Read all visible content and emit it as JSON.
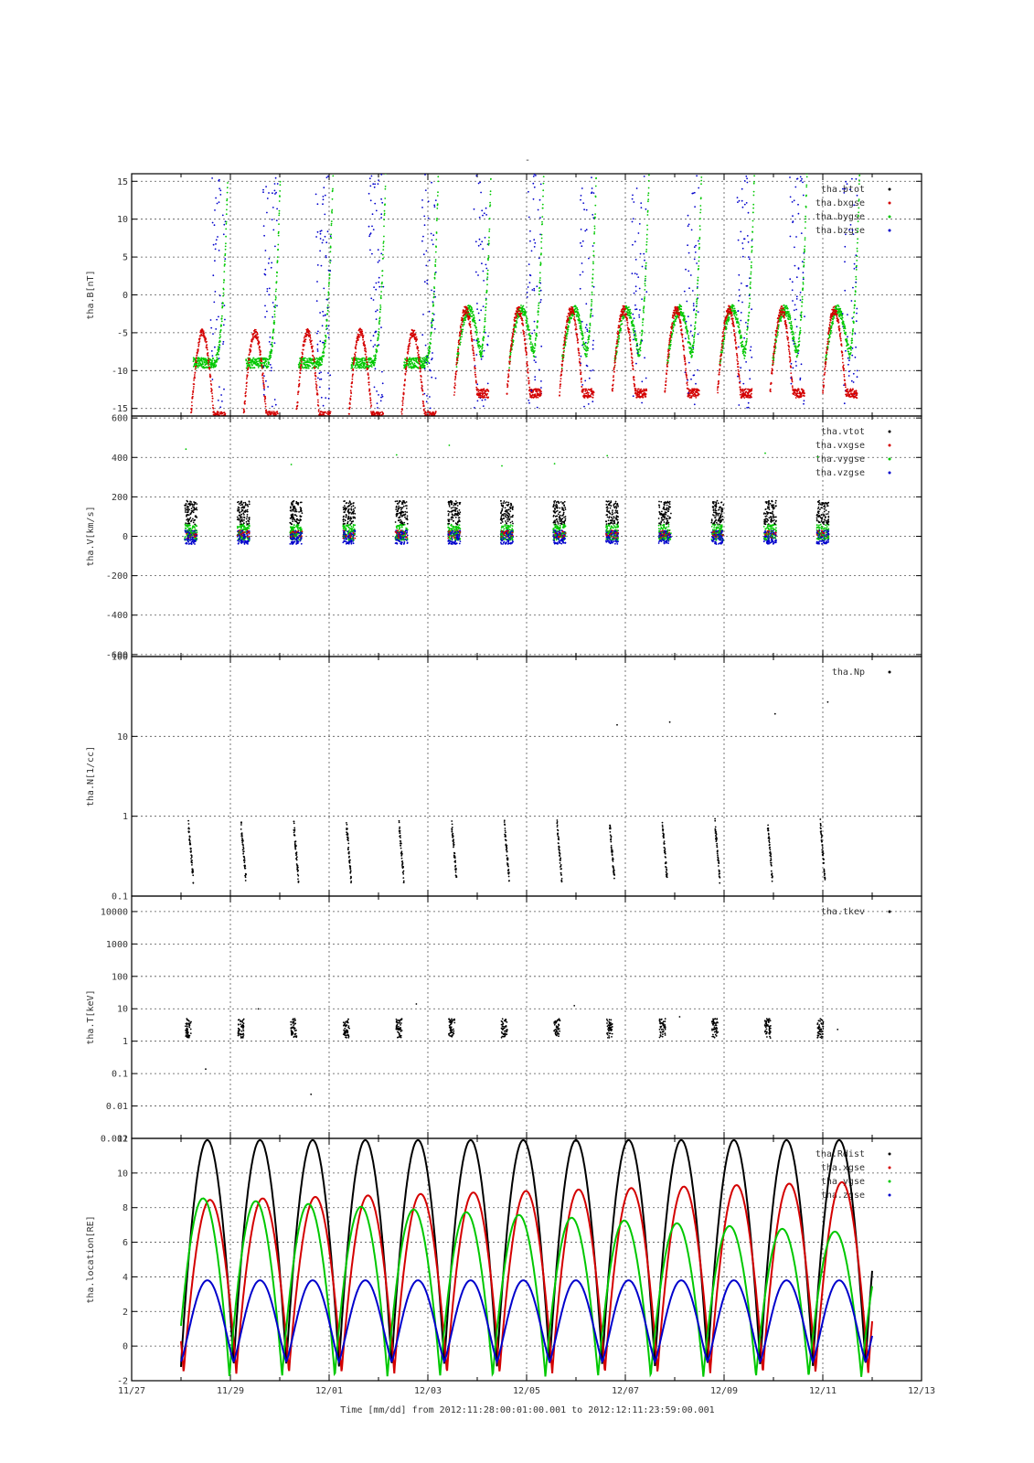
{
  "figure": {
    "title": "-",
    "xlabel": "Time [mm/dd]   from 2012:11:28:00:01:00.001  to  2012:12:11:23:59:00.001"
  },
  "chart_data": [
    {
      "type": "scatter",
      "ylabel": "tha.B[nT]",
      "ylim": [
        -16,
        16
      ],
      "yticks": [
        -15,
        -10,
        -5,
        0,
        5,
        10,
        15
      ],
      "ytick_labels": [
        "-15",
        "-10",
        "-5",
        "0",
        "5",
        "10",
        "15"
      ],
      "legend": [
        "tha.btot",
        "tha.bxgse",
        "tha.bygse",
        "tha.bzgse"
      ],
      "legend_placement": "top-right",
      "series_colors": [
        "#000000",
        "#d40000",
        "#00c800",
        "#0000cc"
      ],
      "grid": true
    },
    {
      "type": "scatter",
      "ylabel": "tha.V[km/s]",
      "ylim": [
        -610,
        610
      ],
      "yticks": [
        -600,
        -400,
        -200,
        0,
        200,
        400,
        600
      ],
      "ytick_labels": [
        "-600",
        "-400",
        "-200",
        "0",
        "200",
        "400",
        "600"
      ],
      "legend": [
        "tha.vtot",
        "tha.vxgse",
        "tha.vygse",
        "tha.vzgse"
      ],
      "legend_placement": "top-right",
      "series_colors": [
        "#000000",
        "#d40000",
        "#00c800",
        "#0000cc"
      ],
      "grid": true
    },
    {
      "type": "scatter",
      "ylabel": "tha.N[1/cc]",
      "yscale": "log",
      "ylim": [
        0.1,
        100
      ],
      "yticks": [
        0.1,
        1,
        10,
        100
      ],
      "ytick_labels": [
        "0.1",
        "1",
        "10",
        "100"
      ],
      "legend": [
        "tha.Np"
      ],
      "legend_placement": "top-right",
      "series_colors": [
        "#000000"
      ],
      "grid": true
    },
    {
      "type": "scatter",
      "ylabel": "tha.T[keV]",
      "yscale": "log",
      "ylim": [
        0.001,
        30000
      ],
      "yticks": [
        0.001,
        0.01,
        0.1,
        1,
        10,
        100,
        1000,
        10000
      ],
      "ytick_labels": [
        "0.001",
        "0.01",
        "0.1",
        "1",
        "10",
        "100",
        "1000",
        "10000"
      ],
      "legend": [
        "tha.tkev"
      ],
      "legend_placement": "top-right",
      "series_colors": [
        "#000000"
      ],
      "grid": true
    },
    {
      "type": "line",
      "ylabel": "tha.location[RE]",
      "ylim": [
        -2,
        12
      ],
      "yticks": [
        -2,
        0,
        2,
        4,
        6,
        8,
        10,
        12
      ],
      "ytick_labels": [
        "-2",
        "0",
        "2",
        "4",
        "6",
        "8",
        "10",
        "12"
      ],
      "legend": [
        "tha.Rdist",
        "tha.xgse",
        "tha.ygse",
        "tha.zgse"
      ],
      "legend_placement": "top-right",
      "series_colors": [
        "#000000",
        "#d40000",
        "#00c800",
        "#0000cc"
      ],
      "grid": true
    }
  ],
  "x_axis": {
    "tick_labels": [
      "11/27",
      "11/29",
      "12/01",
      "12/03",
      "12/05",
      "12/07",
      "12/09",
      "12/11",
      "12/13"
    ],
    "xlim_days": [
      0,
      16
    ],
    "start_date": "11/27"
  }
}
